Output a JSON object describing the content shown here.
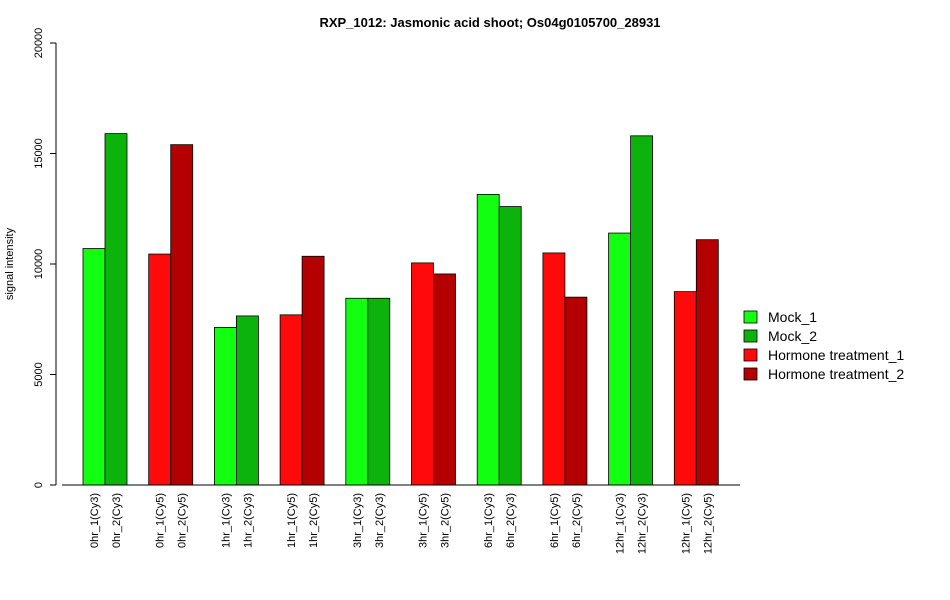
{
  "chart_data": {
    "type": "bar",
    "title": "RXP_1012: Jasmonic acid shoot; Os04g0105700_28931",
    "xlabel": "",
    "ylabel": "signal intensity",
    "ylim": [
      0,
      20000
    ],
    "yticks": [
      0,
      5000,
      10000,
      15000,
      20000
    ],
    "grid": false,
    "legend_position": "right",
    "legend": [
      {
        "label": "Mock_1",
        "color": "#12ff12"
      },
      {
        "label": "Mock_2",
        "color": "#0db30d"
      },
      {
        "label": "Hormone treatment_1",
        "color": "#ff0a0a"
      },
      {
        "label": "Hormone treatment_2",
        "color": "#b40000"
      }
    ],
    "groups": [
      {
        "bars": [
          {
            "label": "0hr_1(Cy3)",
            "value": 10700,
            "color": "#12ff12"
          },
          {
            "label": "0hr_2(Cy3)",
            "value": 15900,
            "color": "#0db30d"
          }
        ]
      },
      {
        "bars": [
          {
            "label": "0hr_1(Cy5)",
            "value": 10450,
            "color": "#ff0a0a"
          },
          {
            "label": "0hr_2(Cy5)",
            "value": 15400,
            "color": "#b40000"
          }
        ]
      },
      {
        "bars": [
          {
            "label": "1hr_1(Cy3)",
            "value": 7130,
            "color": "#12ff12"
          },
          {
            "label": "1hr_2(Cy3)",
            "value": 7650,
            "color": "#0db30d"
          }
        ]
      },
      {
        "bars": [
          {
            "label": "1hr_1(Cy5)",
            "value": 7700,
            "color": "#ff0a0a"
          },
          {
            "label": "1hr_2(Cy5)",
            "value": 10350,
            "color": "#b40000"
          }
        ]
      },
      {
        "bars": [
          {
            "label": "3hr_1(Cy3)",
            "value": 8450,
            "color": "#12ff12"
          },
          {
            "label": "3hr_2(Cy3)",
            "value": 8450,
            "color": "#0db30d"
          }
        ]
      },
      {
        "bars": [
          {
            "label": "3hr_1(Cy5)",
            "value": 10050,
            "color": "#ff0a0a"
          },
          {
            "label": "3hr_2(Cy5)",
            "value": 9550,
            "color": "#b40000"
          }
        ]
      },
      {
        "bars": [
          {
            "label": "6hr_1(Cy3)",
            "value": 13150,
            "color": "#12ff12"
          },
          {
            "label": "6hr_2(Cy3)",
            "value": 12600,
            "color": "#0db30d"
          }
        ]
      },
      {
        "bars": [
          {
            "label": "6hr_1(Cy5)",
            "value": 10500,
            "color": "#ff0a0a"
          },
          {
            "label": "6hr_2(Cy5)",
            "value": 8500,
            "color": "#b40000"
          }
        ]
      },
      {
        "bars": [
          {
            "label": "12hr_1(Cy3)",
            "value": 11400,
            "color": "#12ff12"
          },
          {
            "label": "12hr_2(Cy3)",
            "value": 15800,
            "color": "#0db30d"
          }
        ]
      },
      {
        "bars": [
          {
            "label": "12hr_1(Cy5)",
            "value": 8750,
            "color": "#ff0a0a"
          },
          {
            "label": "12hr_2(Cy5)",
            "value": 11100,
            "color": "#b40000"
          }
        ]
      }
    ]
  }
}
